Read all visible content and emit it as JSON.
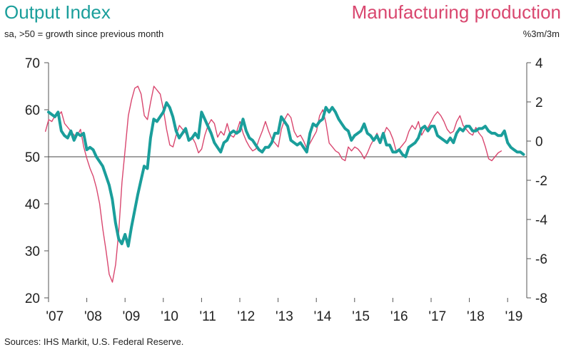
{
  "chart_data": {
    "type": "line",
    "title_left": "Output Index",
    "title_right": "Manufacturing production",
    "subtitle_left": "sa, >50 = growth since previous month",
    "subtitle_right": "%3m/3m",
    "source": "Sources: IHS Markit, U.S. Federal Reserve.",
    "x_tick_labels": [
      "'07",
      "'08",
      "'09",
      "'10",
      "'11",
      "'12",
      "'13",
      "'14",
      "'15",
      "'16",
      "'17",
      "'18",
      "'19"
    ],
    "left_axis": {
      "ylim": [
        20,
        70
      ],
      "ticks": [
        20,
        30,
        40,
        50,
        60,
        70
      ]
    },
    "right_axis": {
      "ylim": [
        -8,
        4
      ],
      "ticks": [
        -8,
        -6,
        -4,
        -2,
        0,
        2,
        4
      ]
    },
    "reference_line": 50,
    "colors": {
      "output_index": "#1a9e9b",
      "manufacturing": "#d9476f"
    },
    "series": [
      {
        "axis": "left",
        "x_start": 2007.0,
        "x_step": 0.0833333,
        "values": [
          59.5,
          59,
          58.5,
          59.5,
          55.5,
          54.5,
          54,
          55.5,
          53.5,
          55,
          54.5,
          55,
          51.5,
          52,
          51.5,
          50,
          49,
          48,
          46,
          44,
          41,
          36,
          32.5,
          31.5,
          33.5,
          31,
          35,
          38.5,
          42,
          45,
          48,
          47.5,
          54,
          58,
          57.5,
          58.5,
          59.5,
          61.5,
          60.5,
          58.5,
          55.5,
          54,
          55,
          56,
          53.5,
          54,
          55,
          54,
          59.5,
          58,
          56.5,
          55,
          53,
          52,
          51,
          53,
          53.5,
          55,
          55.5,
          55,
          55.5,
          58,
          55.5,
          54,
          53.5,
          52.5,
          51.5,
          51,
          52,
          52,
          53,
          55,
          55,
          58.5,
          57.5,
          56.5,
          53.5,
          53,
          52.5,
          53,
          52,
          51,
          55,
          57,
          56.5,
          57.5,
          58,
          60.5,
          59.5,
          60.5,
          59.5,
          58,
          57,
          56,
          55.5,
          53.5,
          54.5,
          55,
          55.5,
          57,
          55,
          54.5,
          53.5,
          54.5,
          53,
          55,
          52.5,
          52.5,
          51,
          51,
          51.5,
          50.5,
          50,
          52,
          52.5,
          53,
          54,
          56,
          56.5,
          55.5,
          56.5,
          56.5,
          54.5,
          54,
          53.5,
          53,
          54,
          53,
          55,
          56,
          55.5,
          56.5,
          56.5,
          55.5,
          55.5,
          56,
          56,
          56.5,
          55.5,
          55,
          55,
          54.5,
          54.5,
          55.5,
          53,
          52,
          51.5,
          51,
          51,
          50.5
        ]
      },
      {
        "axis": "right",
        "x_start": 2006.92,
        "x_step": 0.0833333,
        "values": [
          0.5,
          1.1,
          1.0,
          1.3,
          1.3,
          1.5,
          0.9,
          0.7,
          0.5,
          0.3,
          0.3,
          0.6,
          -0.3,
          -0.9,
          -1.4,
          -1.8,
          -2.4,
          -3.2,
          -4.5,
          -5.6,
          -6.8,
          -7.2,
          -6.3,
          -4.6,
          -2.1,
          -0.4,
          1.3,
          2.1,
          2.7,
          2.8,
          2.4,
          1.3,
          1.1,
          2.0,
          2.8,
          2.6,
          2.4,
          1.6,
          0.6,
          -0.2,
          -0.3,
          0.3,
          0.8,
          0.6,
          0.4,
          0.0,
          0.2,
          -0.1,
          -0.6,
          -0.4,
          0.3,
          0.8,
          1.1,
          0.9,
          0.2,
          0.5,
          0.3,
          0.9,
          0.3,
          0.2,
          0.5,
          1.0,
          0.4,
          0.0,
          -0.3,
          -0.5,
          -0.4,
          0.1,
          0.5,
          1.0,
          0.5,
          0.1,
          -0.1,
          -0.3,
          0.6,
          1.1,
          1.4,
          1.2,
          0.5,
          0.2,
          0.3,
          0.0,
          -0.4,
          -0.1,
          0.2,
          0.5,
          1.3,
          1.6,
          0.9,
          -0.1,
          -0.3,
          -0.5,
          -0.6,
          -0.9,
          -1.0,
          -0.3,
          -0.5,
          -0.3,
          -0.4,
          -0.6,
          -0.9,
          -0.6,
          -0.2,
          0.1,
          0.4,
          0.0,
          0.3,
          0.7,
          0.5,
          0.1,
          -0.5,
          -0.4,
          -0.2,
          0.0,
          0.5,
          0.8,
          0.6,
          1.0,
          0.3,
          0.6,
          0.7,
          1.0,
          1.3,
          1.5,
          1.3,
          1.0,
          0.6,
          0.4,
          0.5,
          1.0,
          1.3,
          0.8,
          0.6,
          0.4,
          0.3,
          0.7,
          0.4,
          0.2,
          -0.3,
          -0.9,
          -1.0,
          -0.8,
          -0.6,
          -0.5
        ]
      }
    ]
  }
}
